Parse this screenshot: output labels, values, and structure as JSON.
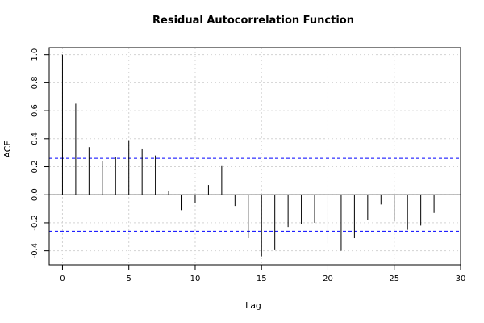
{
  "chart_data": {
    "type": "bar",
    "title": "Residual Autocorrelation Function",
    "xlabel": "Lag",
    "ylabel": "ACF",
    "xlim": [
      -1,
      30
    ],
    "ylim": [
      -0.5,
      1.05
    ],
    "xticks": [
      0,
      5,
      10,
      15,
      20,
      25,
      30
    ],
    "yticks": [
      -0.4,
      -0.2,
      0.0,
      0.2,
      0.4,
      0.6,
      0.8,
      1.0
    ],
    "ytick_labels": [
      "-0.4",
      "-0.2",
      "0.0",
      "0.2",
      "0.4",
      "0.6",
      "0.8",
      "1.0"
    ],
    "grid": true,
    "confidence_band": 0.26,
    "confidence_color": "#0000ff",
    "lags": [
      0,
      1,
      2,
      3,
      4,
      5,
      6,
      7,
      8,
      9,
      10,
      11,
      12,
      13,
      14,
      15,
      16,
      17,
      18,
      19,
      20,
      21,
      22,
      23,
      24,
      25,
      26,
      27,
      28
    ],
    "values": [
      1.0,
      0.65,
      0.34,
      0.24,
      0.27,
      0.39,
      0.33,
      0.28,
      0.03,
      -0.11,
      -0.06,
      0.07,
      0.21,
      -0.08,
      -0.31,
      -0.44,
      -0.39,
      -0.23,
      -0.21,
      -0.2,
      -0.35,
      -0.4,
      -0.31,
      -0.18,
      -0.07,
      -0.19,
      -0.25,
      -0.22,
      -0.13
    ]
  }
}
